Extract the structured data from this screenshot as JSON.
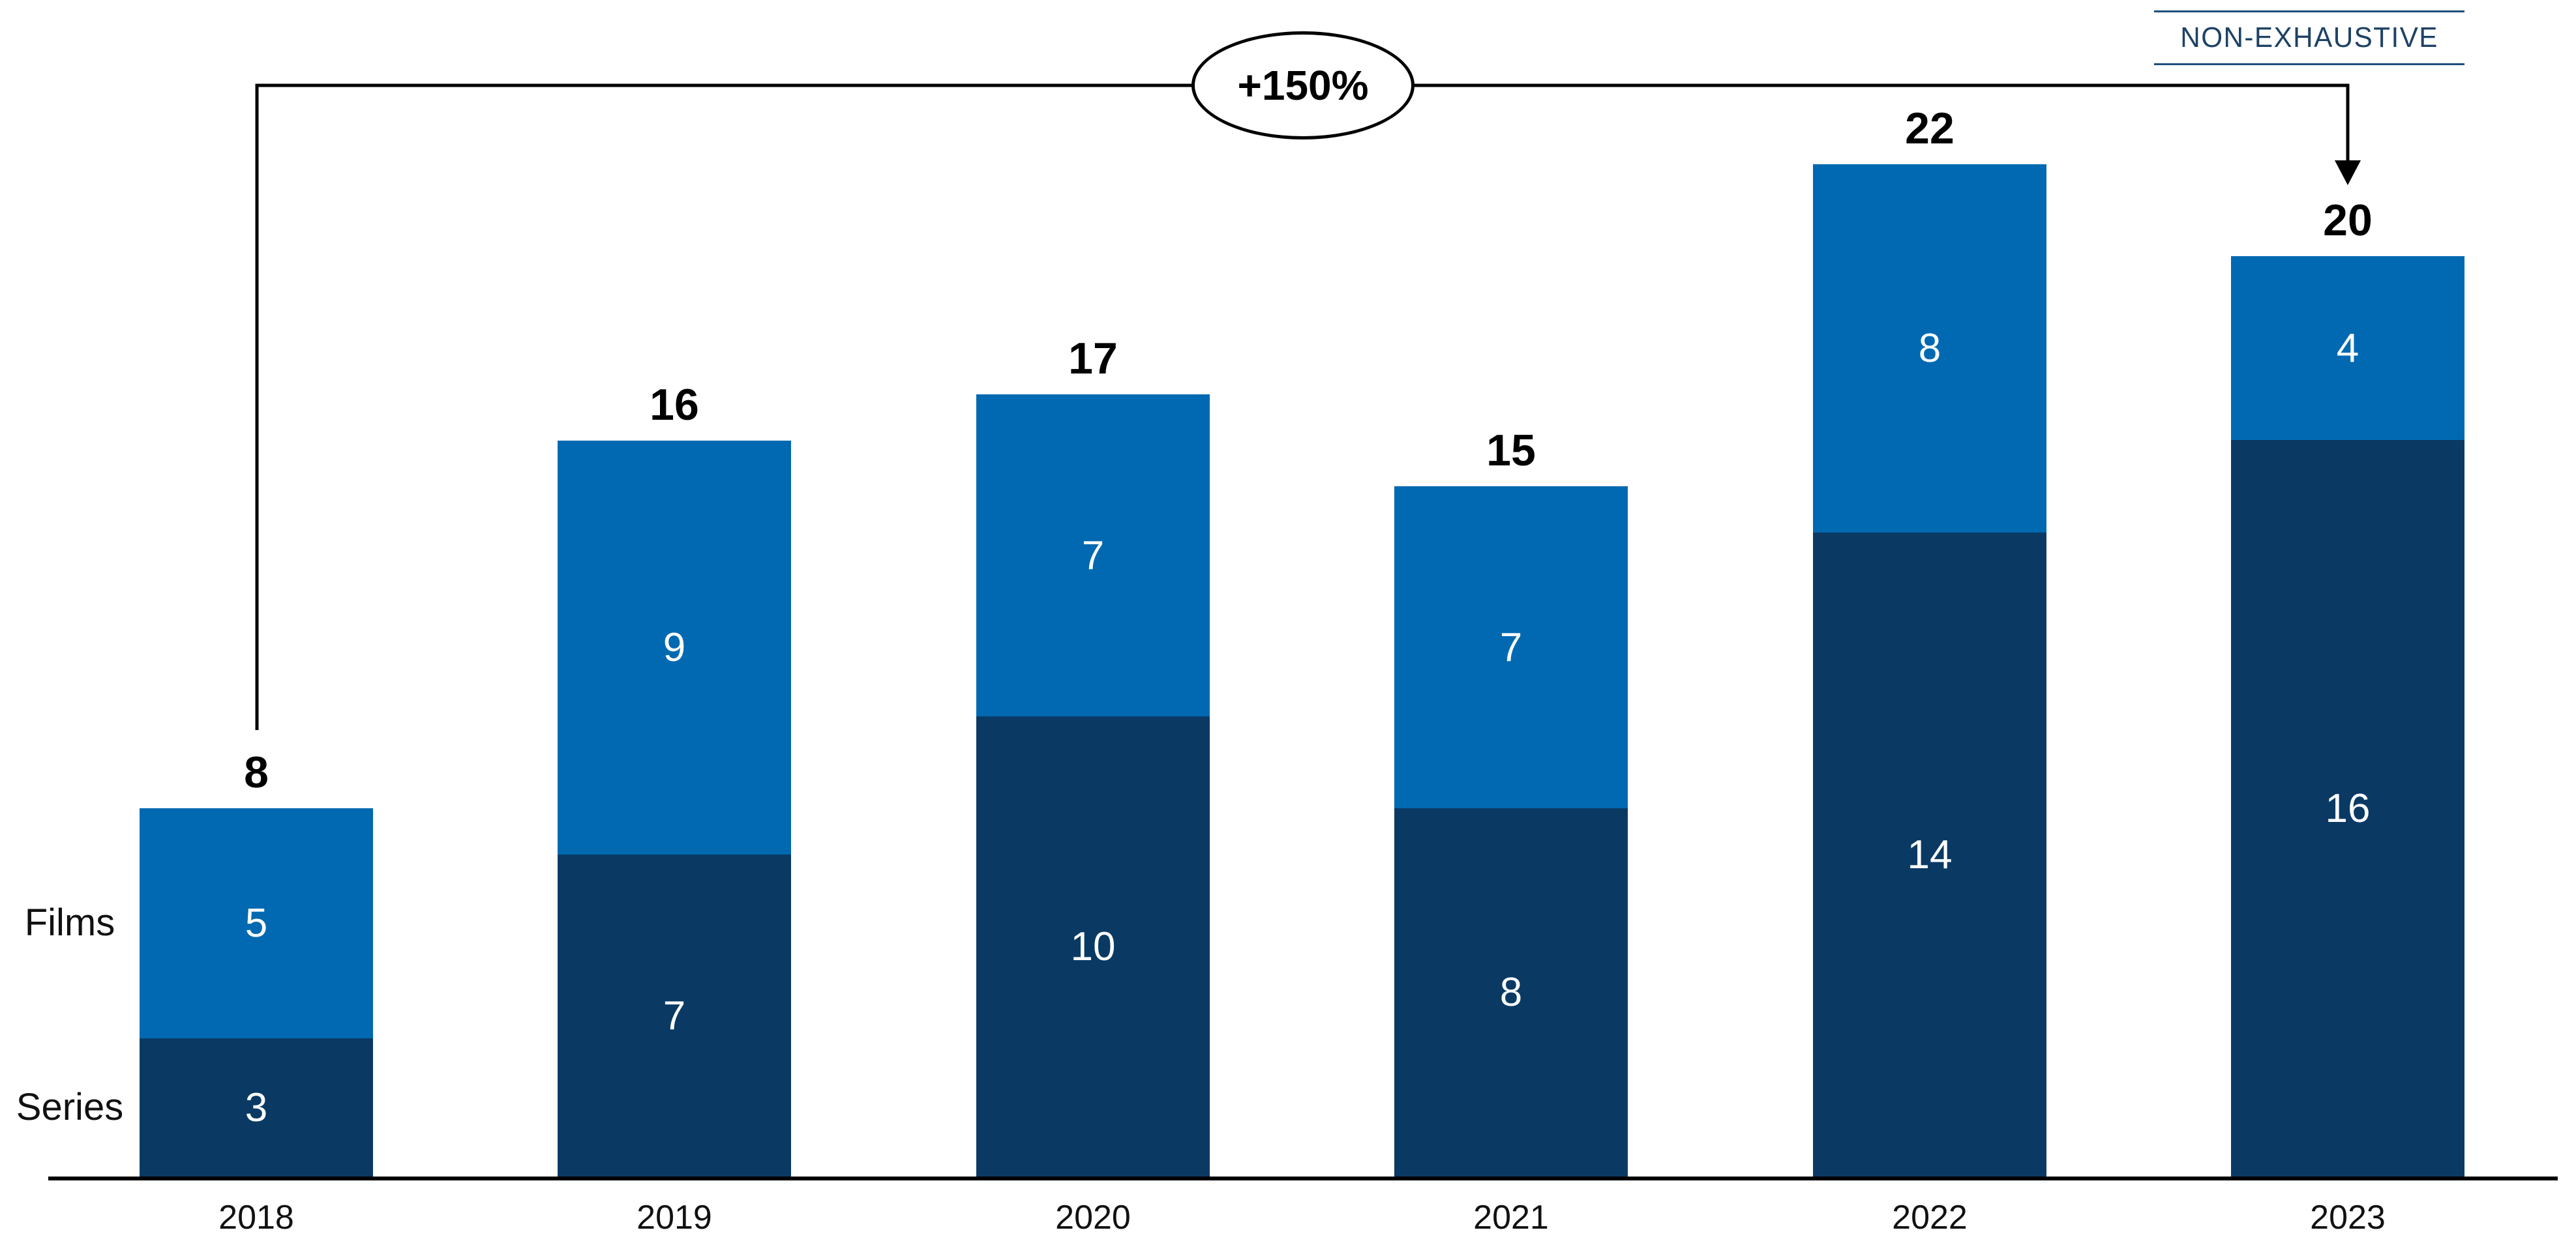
{
  "header": {
    "non_exhaustive_label": "NON-EXHAUSTIVE"
  },
  "annotation": {
    "growth_label": "+150%"
  },
  "side_labels": {
    "films": "Films",
    "series": "Series"
  },
  "colors": {
    "films_segment": "#0069B1",
    "series_segment": "#0A3A64",
    "segment_value_text": "#FFFFFF",
    "total_label_text": "#000000",
    "non_exhaustive_text": "#1E4265",
    "non_exhaustive_rule": "#1F4E79",
    "annotation_line": "#000000",
    "axis_line": "#000000"
  },
  "chart_data": {
    "type": "bar",
    "stacked": true,
    "title": "",
    "xlabel": "",
    "ylabel": "",
    "categories": [
      "2018",
      "2019",
      "2020",
      "2021",
      "2022",
      "2023"
    ],
    "series": [
      {
        "name": "Series",
        "color": "#0A3A64",
        "position": "bottom",
        "values": [
          3,
          7,
          10,
          8,
          14,
          16
        ]
      },
      {
        "name": "Films",
        "color": "#0069B1",
        "position": "top",
        "values": [
          5,
          9,
          7,
          7,
          8,
          4
        ]
      }
    ],
    "totals": [
      8,
      16,
      17,
      15,
      22,
      20
    ],
    "value_labels": "inside segments (white) and bold totals above bars",
    "ylim": [
      0,
      24
    ],
    "grid": false,
    "axes": "x axis baseline only, no ticks, no y axis",
    "legend_position": "row labels left of first bar (Films upper, Series lower)",
    "annotations": [
      {
        "type": "growth-bracket",
        "label": "+150%",
        "from_category": "2018",
        "to_category": "2023",
        "arrow_end": "to"
      },
      {
        "type": "note",
        "label": "NON-EXHAUSTIVE",
        "position": "top-right"
      }
    ]
  }
}
